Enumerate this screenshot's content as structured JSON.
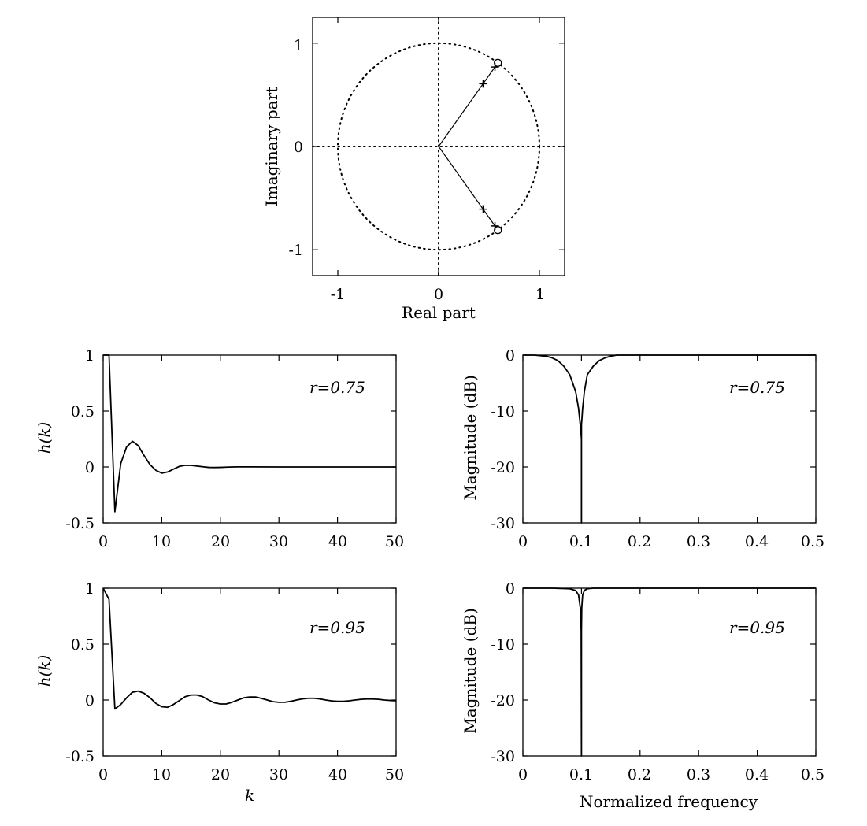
{
  "figure": {
    "background": "#ffffff",
    "ink": "#000000"
  },
  "chart_data": [
    {
      "id": "pz",
      "type": "scatter",
      "title": "",
      "xlabel": "Real part",
      "ylabel": "Imaginary part",
      "xlim": [
        -1.25,
        1.25
      ],
      "ylim": [
        -1.25,
        1.25
      ],
      "xticks": [
        -1,
        0,
        1
      ],
      "yticks": [
        -1,
        0,
        1
      ],
      "xtick_labels": [
        "-1",
        "0",
        "1"
      ],
      "ytick_labels": [
        "-1",
        "0",
        "1"
      ],
      "unit_circle": true,
      "grid": false,
      "zeros": [
        [
          0.588,
          0.809
        ],
        [
          0.588,
          -0.809
        ]
      ],
      "poles": [
        [
          0.441,
          0.607
        ],
        [
          0.559,
          0.769
        ],
        [
          0.441,
          -0.607
        ],
        [
          0.559,
          -0.769
        ]
      ],
      "pole_marker": "+",
      "zero_marker": "o"
    },
    {
      "id": "h75",
      "type": "line",
      "xlabel": "",
      "ylabel": "h(k)",
      "xlim": [
        0,
        50
      ],
      "ylim": [
        -0.5,
        1
      ],
      "xticks": [
        0,
        10,
        20,
        30,
        40,
        50
      ],
      "yticks": [
        -0.5,
        0,
        0.5,
        1
      ],
      "xtick_labels": [
        "0",
        "10",
        "20",
        "30",
        "40",
        "50"
      ],
      "ytick_labels": [
        "-0.5",
        "0",
        "0.5",
        "1"
      ],
      "annotation": "r=0.75",
      "series": [
        {
          "x": [
            0,
            1,
            2,
            3,
            4,
            5,
            6,
            7,
            8,
            9,
            10,
            11,
            12,
            13,
            14,
            15,
            16,
            17,
            18,
            19,
            20,
            21,
            22,
            23,
            24,
            25,
            30,
            35,
            40,
            45,
            50
          ],
          "values": [
            1,
            1,
            -0.4,
            0.03,
            0.18,
            0.23,
            0.19,
            0.1,
            0.02,
            -0.03,
            -0.055,
            -0.045,
            -0.02,
            0.005,
            0.015,
            0.014,
            0.008,
            0.002,
            -0.004,
            -0.005,
            -0.004,
            -0.002,
            0,
            0.001,
            0.001,
            0.001,
            0,
            0,
            0,
            0,
            0
          ]
        }
      ]
    },
    {
      "id": "m75",
      "type": "line",
      "xlabel": "",
      "ylabel": "Magnitude (dB)",
      "xlim": [
        0,
        0.5
      ],
      "ylim": [
        -30,
        0
      ],
      "xticks": [
        0,
        0.1,
        0.2,
        0.3,
        0.4,
        0.5
      ],
      "yticks": [
        -30,
        -20,
        -10,
        0
      ],
      "xtick_labels": [
        "0",
        "0.1",
        "0.2",
        "0.3",
        "0.4",
        "0.5"
      ],
      "ytick_labels": [
        "-30",
        "-20",
        "-10",
        "0"
      ],
      "annotation": "r=0.75",
      "series": [
        {
          "x": [
            0,
            0.02,
            0.04,
            0.05,
            0.06,
            0.07,
            0.08,
            0.09,
            0.095,
            0.098,
            0.1,
            0.1,
            0.1,
            0.102,
            0.105,
            0.11,
            0.12,
            0.13,
            0.14,
            0.15,
            0.16,
            0.18,
            0.2,
            0.3,
            0.4,
            0.5
          ],
          "values": [
            0,
            0,
            -0.2,
            -0.5,
            -1,
            -2,
            -3.5,
            -6.5,
            -9.5,
            -12.5,
            -15,
            -30,
            -12.5,
            -9.5,
            -6.5,
            -3.5,
            -2,
            -1,
            -0.5,
            -0.2,
            0,
            0,
            0,
            0,
            0,
            0
          ]
        }
      ]
    },
    {
      "id": "h95",
      "type": "line",
      "xlabel": "k",
      "ylabel": "h(k)",
      "xlim": [
        0,
        50
      ],
      "ylim": [
        -0.5,
        1
      ],
      "xticks": [
        0,
        10,
        20,
        30,
        40,
        50
      ],
      "yticks": [
        -0.5,
        0,
        0.5,
        1
      ],
      "xtick_labels": [
        "0",
        "10",
        "20",
        "30",
        "40",
        "50"
      ],
      "ytick_labels": [
        "-0.5",
        "0",
        "0.5",
        "1"
      ],
      "annotation": "r=0.95",
      "series": [
        {
          "x": [
            0,
            1,
            2,
            3,
            4,
            5,
            6,
            7,
            8,
            9,
            10,
            11,
            12,
            13,
            14,
            15,
            16,
            17,
            18,
            19,
            20,
            21,
            22,
            23,
            24,
            25,
            26,
            27,
            28,
            29,
            30,
            31,
            32,
            33,
            34,
            35,
            36,
            37,
            38,
            39,
            40,
            41,
            42,
            43,
            44,
            45,
            46,
            47,
            48,
            49,
            50
          ],
          "values": [
            1,
            0.9,
            -0.08,
            -0.04,
            0.02,
            0.07,
            0.08,
            0.06,
            0.02,
            -0.03,
            -0.06,
            -0.065,
            -0.04,
            -0.005,
            0.03,
            0.045,
            0.045,
            0.03,
            0,
            -0.025,
            -0.035,
            -0.035,
            -0.02,
            0,
            0.02,
            0.027,
            0.027,
            0.015,
            0,
            -0.015,
            -0.02,
            -0.02,
            -0.012,
            0,
            0.01,
            0.016,
            0.016,
            0.01,
            0,
            -0.008,
            -0.012,
            -0.012,
            -0.007,
            0,
            0.006,
            0.009,
            0.009,
            0.006,
            0,
            -0.004,
            -0.007
          ]
        }
      ]
    },
    {
      "id": "m95",
      "type": "line",
      "xlabel": "Normalized frequency",
      "ylabel": "Magnitude (dB)",
      "xlim": [
        0,
        0.5
      ],
      "ylim": [
        -30,
        0
      ],
      "xticks": [
        0,
        0.1,
        0.2,
        0.3,
        0.4,
        0.5
      ],
      "yticks": [
        -30,
        -20,
        -10,
        0
      ],
      "xtick_labels": [
        "0",
        "0.1",
        "0.2",
        "0.3",
        "0.4",
        "0.5"
      ],
      "ytick_labels": [
        "-30",
        "-20",
        "-10",
        "0"
      ],
      "annotation": "r=0.95",
      "series": [
        {
          "x": [
            0,
            0.05,
            0.08,
            0.09,
            0.095,
            0.098,
            0.0995,
            0.1,
            0.1,
            0.1005,
            0.102,
            0.105,
            0.11,
            0.12,
            0.15,
            0.2,
            0.3,
            0.4,
            0.5
          ],
          "values": [
            0,
            0,
            -0.1,
            -0.4,
            -1.2,
            -3.5,
            -7.5,
            -30,
            -7.5,
            -3.5,
            -1.2,
            -0.4,
            -0.1,
            0,
            0,
            0,
            0,
            0,
            0
          ]
        }
      ]
    }
  ]
}
